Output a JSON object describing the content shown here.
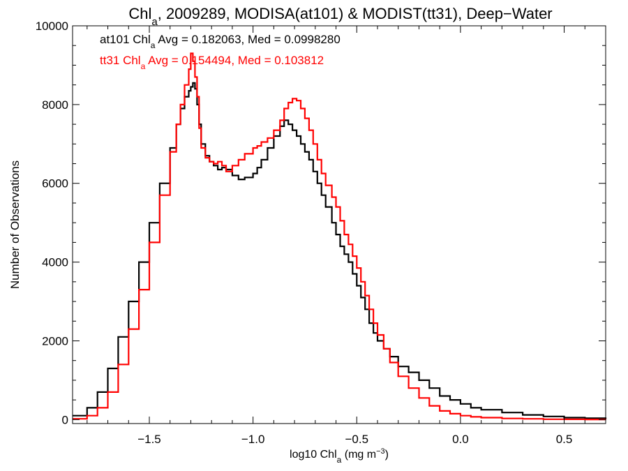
{
  "chart_data": {
    "type": "line",
    "title_main": "Chl",
    "title_sub": "a",
    "title_rest": ", 2009289, MODISA(at101) & MODIST(tt31), Deep−Water",
    "xlabel_main": "log10 Chl",
    "xlabel_sub": "a",
    "xlabel_unit": " (mg m",
    "xlabel_sup": "−3",
    "xlabel_close": ")",
    "ylabel": "Number of Observations",
    "xlim": [
      -1.87,
      0.7
    ],
    "ylim": [
      -100,
      10000
    ],
    "xticks": [
      {
        "value": -1.5,
        "label": "−1.5"
      },
      {
        "value": -1.0,
        "label": "−1.0"
      },
      {
        "value": -0.5,
        "label": "−0.5"
      },
      {
        "value": 0.0,
        "label": "0.0"
      },
      {
        "value": 0.5,
        "label": "0.5"
      }
    ],
    "yticks": [
      {
        "value": 0,
        "label": "0"
      },
      {
        "value": 2000,
        "label": "2000"
      },
      {
        "value": 4000,
        "label": "4000"
      },
      {
        "value": 6000,
        "label": "6000"
      },
      {
        "value": 8000,
        "label": "8000"
      },
      {
        "value": 10000,
        "label": "10000"
      }
    ],
    "annotations": [
      {
        "pre": "at101 Chl",
        "sub": "a",
        "post": " Avg = 0.182063, Med = 0.0998280",
        "color": "#000000"
      },
      {
        "pre": "tt31 Chl",
        "sub": "a",
        "post": " Avg = 0.154494, Med = 0.103812",
        "color": "#ff0000"
      }
    ],
    "series": [
      {
        "color": "#000000",
        "x": [
          -1.87,
          -1.8,
          -1.75,
          -1.7,
          -1.65,
          -1.6,
          -1.55,
          -1.5,
          -1.45,
          -1.4,
          -1.37,
          -1.35,
          -1.33,
          -1.31,
          -1.3,
          -1.29,
          -1.28,
          -1.27,
          -1.26,
          -1.25,
          -1.23,
          -1.21,
          -1.19,
          -1.17,
          -1.15,
          -1.13,
          -1.1,
          -1.07,
          -1.04,
          -1.0,
          -0.98,
          -0.96,
          -0.93,
          -0.9,
          -0.87,
          -0.85,
          -0.83,
          -0.81,
          -0.79,
          -0.77,
          -0.75,
          -0.73,
          -0.71,
          -0.69,
          -0.67,
          -0.65,
          -0.62,
          -0.6,
          -0.58,
          -0.56,
          -0.54,
          -0.52,
          -0.5,
          -0.48,
          -0.46,
          -0.44,
          -0.42,
          -0.4,
          -0.37,
          -0.34,
          -0.3,
          -0.25,
          -0.2,
          -0.15,
          -0.1,
          -0.05,
          0.0,
          0.05,
          0.1,
          0.2,
          0.3,
          0.4,
          0.5,
          0.6,
          0.7
        ],
        "y": [
          100,
          300,
          700,
          1300,
          2100,
          3000,
          4000,
          5000,
          6000,
          6900,
          7500,
          7900,
          8200,
          8350,
          8450,
          8550,
          8400,
          8000,
          7500,
          7000,
          6700,
          6550,
          6450,
          6350,
          6400,
          6350,
          6200,
          6100,
          6150,
          6250,
          6400,
          6600,
          6900,
          7200,
          7450,
          7600,
          7500,
          7350,
          7200,
          7000,
          6800,
          6600,
          6300,
          6000,
          5700,
          5400,
          5000,
          4700,
          4400,
          4200,
          4000,
          3700,
          3400,
          3100,
          2800,
          2450,
          2200,
          2000,
          1800,
          1600,
          1350,
          1200,
          1000,
          800,
          600,
          500,
          400,
          300,
          250,
          180,
          120,
          80,
          50,
          35,
          20
        ]
      },
      {
        "color": "#ff0000",
        "x": [
          -1.87,
          -1.8,
          -1.75,
          -1.7,
          -1.65,
          -1.6,
          -1.55,
          -1.5,
          -1.45,
          -1.4,
          -1.37,
          -1.35,
          -1.33,
          -1.31,
          -1.3,
          -1.29,
          -1.28,
          -1.27,
          -1.26,
          -1.25,
          -1.23,
          -1.21,
          -1.19,
          -1.17,
          -1.15,
          -1.13,
          -1.1,
          -1.07,
          -1.04,
          -1.0,
          -0.98,
          -0.96,
          -0.93,
          -0.9,
          -0.87,
          -0.85,
          -0.83,
          -0.81,
          -0.79,
          -0.77,
          -0.75,
          -0.73,
          -0.71,
          -0.69,
          -0.67,
          -0.65,
          -0.62,
          -0.6,
          -0.58,
          -0.56,
          -0.54,
          -0.52,
          -0.5,
          -0.48,
          -0.46,
          -0.44,
          -0.42,
          -0.4,
          -0.37,
          -0.34,
          -0.3,
          -0.25,
          -0.2,
          -0.15,
          -0.1,
          -0.05,
          0.0,
          0.05,
          0.1,
          0.2,
          0.3,
          0.4,
          0.5,
          0.6,
          0.7
        ],
        "y": [
          20,
          100,
          300,
          700,
          1400,
          2300,
          3300,
          4500,
          5700,
          6800,
          7500,
          8000,
          8500,
          8900,
          9300,
          9100,
          8700,
          8200,
          7400,
          6900,
          6650,
          6550,
          6500,
          6550,
          6450,
          6300,
          6450,
          6600,
          6750,
          6900,
          6950,
          7050,
          7150,
          7350,
          7600,
          7900,
          8050,
          8150,
          8100,
          7900,
          7650,
          7350,
          7000,
          6600,
          6250,
          5950,
          5650,
          5400,
          5050,
          4700,
          4450,
          4150,
          3850,
          3500,
          3150,
          2800,
          2450,
          2150,
          1800,
          1450,
          1100,
          800,
          550,
          350,
          220,
          150,
          100,
          70,
          50,
          30,
          20,
          10,
          8,
          5,
          3
        ]
      }
    ]
  }
}
